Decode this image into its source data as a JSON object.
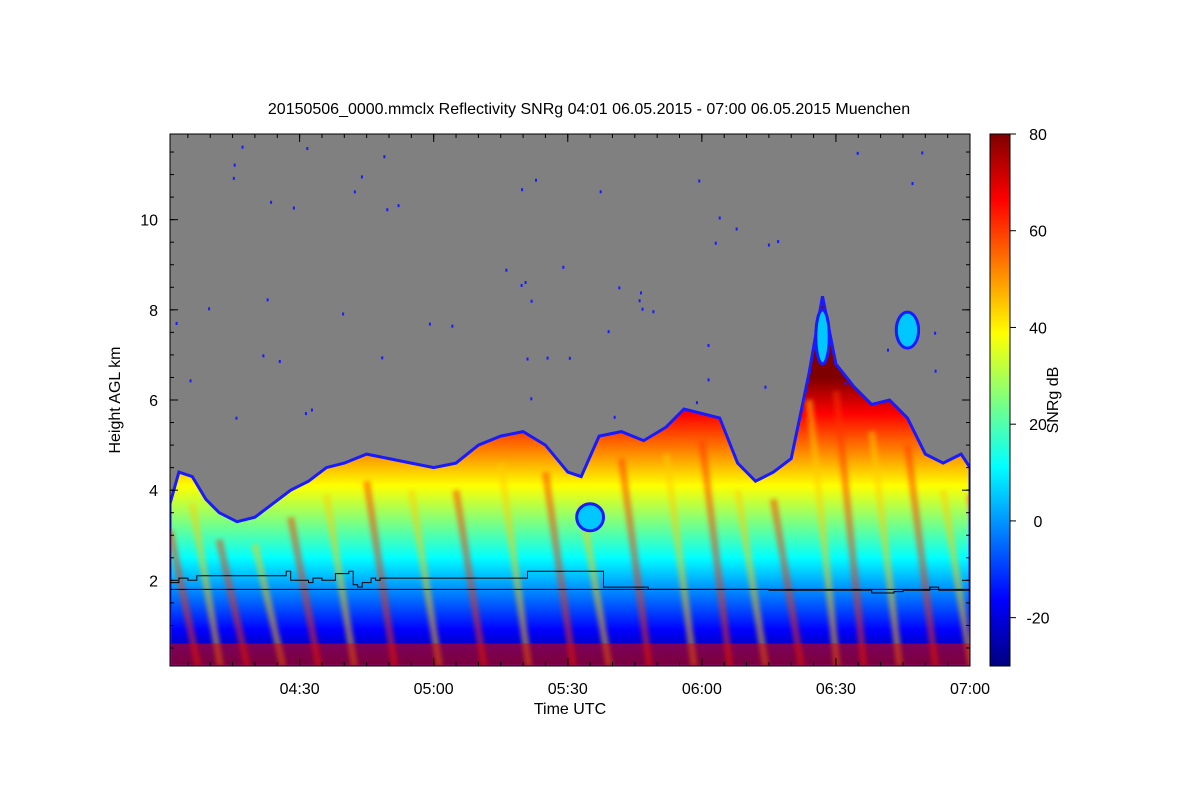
{
  "chart_data": {
    "type": "heatmap",
    "title": "20150506_0000.mmclx Reflectivity SNRg   04:01 06.05.2015 - 07:00 06.05.2015 Muenchen",
    "xlabel": "Time UTC",
    "ylabel": "Height AGL km",
    "colorbar_label": "SNRg dB",
    "x_range_minutes": [
      241,
      420
    ],
    "y_range_km": [
      0.1,
      11.9
    ],
    "x_ticks": [
      {
        "minutes": 270,
        "label": "04:30"
      },
      {
        "minutes": 300,
        "label": "05:00"
      },
      {
        "minutes": 330,
        "label": "05:30"
      },
      {
        "minutes": 360,
        "label": "06:00"
      },
      {
        "minutes": 390,
        "label": "06:30"
      },
      {
        "minutes": 420,
        "label": "07:00"
      }
    ],
    "y_ticks": [
      {
        "value": 2,
        "label": "2"
      },
      {
        "value": 4,
        "label": "4"
      },
      {
        "value": 6,
        "label": "6"
      },
      {
        "value": 8,
        "label": "8"
      },
      {
        "value": 10,
        "label": "10"
      }
    ],
    "colorbar_range": [
      -30,
      80
    ],
    "colorbar_ticks": [
      {
        "value": -20,
        "label": "-20"
      },
      {
        "value": 0,
        "label": "0"
      },
      {
        "value": 20,
        "label": "20"
      },
      {
        "value": 40,
        "label": "40"
      },
      {
        "value": 60,
        "label": "60"
      },
      {
        "value": 80,
        "label": "80"
      }
    ],
    "cloud_top_km": [
      [
        241,
        3.7
      ],
      [
        243,
        4.4
      ],
      [
        246,
        4.3
      ],
      [
        249,
        3.8
      ],
      [
        252,
        3.5
      ],
      [
        256,
        3.3
      ],
      [
        260,
        3.4
      ],
      [
        264,
        3.7
      ],
      [
        268,
        4.0
      ],
      [
        272,
        4.2
      ],
      [
        276,
        4.5
      ],
      [
        280,
        4.6
      ],
      [
        285,
        4.8
      ],
      [
        290,
        4.7
      ],
      [
        295,
        4.6
      ],
      [
        300,
        4.5
      ],
      [
        305,
        4.6
      ],
      [
        310,
        5.0
      ],
      [
        315,
        5.2
      ],
      [
        320,
        5.3
      ],
      [
        325,
        5.0
      ],
      [
        330,
        4.4
      ],
      [
        333,
        4.3
      ],
      [
        337,
        5.2
      ],
      [
        342,
        5.3
      ],
      [
        347,
        5.1
      ],
      [
        352,
        5.4
      ],
      [
        356,
        5.8
      ],
      [
        360,
        5.7
      ],
      [
        364,
        5.6
      ],
      [
        368,
        4.6
      ],
      [
        372,
        4.2
      ],
      [
        376,
        4.4
      ],
      [
        380,
        4.7
      ],
      [
        384,
        6.6
      ],
      [
        387,
        8.3
      ],
      [
        390,
        6.8
      ],
      [
        394,
        6.3
      ],
      [
        398,
        5.9
      ],
      [
        402,
        6.0
      ],
      [
        406,
        5.6
      ],
      [
        410,
        4.8
      ],
      [
        414,
        4.6
      ],
      [
        418,
        4.8
      ],
      [
        420,
        4.5
      ]
    ],
    "echo_patches": [
      {
        "t": 387,
        "y": 7.4,
        "w_min": 1.5,
        "h_km": 1.2
      },
      {
        "t": 406,
        "y": 7.55,
        "w_min": 2.5,
        "h_km": 0.8
      },
      {
        "t": 335,
        "y": 3.4,
        "w_min": 3.0,
        "h_km": 0.6
      }
    ],
    "mixing_layer_height_km": [
      [
        241,
        1.95
      ],
      [
        243,
        2.05
      ],
      [
        245,
        2.0
      ],
      [
        247,
        2.1
      ],
      [
        266,
        2.1
      ],
      [
        267,
        2.2
      ],
      [
        268,
        2.0
      ],
      [
        272,
        1.95
      ],
      [
        273,
        2.05
      ],
      [
        275,
        2.0
      ],
      [
        278,
        2.15
      ],
      [
        281,
        2.2
      ],
      [
        282,
        1.9
      ],
      [
        283,
        1.85
      ],
      [
        284,
        1.95
      ],
      [
        286,
        2.05
      ],
      [
        287,
        2.0
      ],
      [
        288,
        2.05
      ],
      [
        320,
        2.05
      ],
      [
        321,
        2.2
      ],
      [
        336,
        2.2
      ],
      [
        337,
        2.2
      ],
      [
        338,
        1.85
      ],
      [
        346,
        1.85
      ],
      [
        348,
        1.8
      ],
      [
        360,
        1.8
      ],
      [
        375,
        1.78
      ],
      [
        396,
        1.78
      ],
      [
        398,
        1.72
      ],
      [
        403,
        1.75
      ],
      [
        405,
        1.78
      ],
      [
        411,
        1.85
      ],
      [
        413,
        1.78
      ],
      [
        420,
        1.78
      ]
    ],
    "reference_line_km": 1.8,
    "noise_background_color": "#808080",
    "colormap": [
      "#00007f",
      "#0000ff",
      "#007fff",
      "#00ffff",
      "#7fff7f",
      "#ffff00",
      "#ff7f00",
      "#ff0000",
      "#7f0000"
    ]
  }
}
